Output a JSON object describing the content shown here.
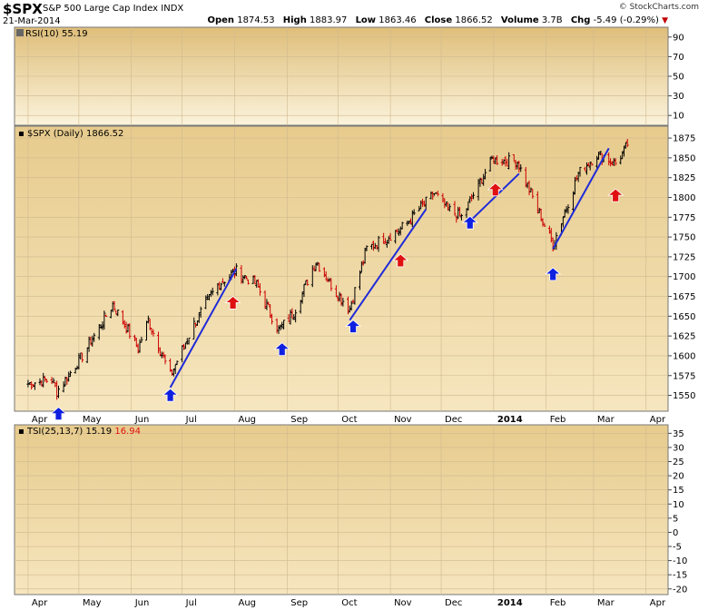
{
  "header": {
    "symbol": "$SPX",
    "name": "S&P 500 Large Cap Index",
    "exchange": "INDX",
    "date": "21-Mar-2014",
    "logo": "© StockCharts.com",
    "open_label": "Open",
    "open": "1874.53",
    "high_label": "High",
    "high": "1883.97",
    "low_label": "Low",
    "low": "1863.46",
    "close_label": "Close",
    "close": "1866.52",
    "volume_label": "Volume",
    "volume": "3.7B",
    "chg_label": "Chg",
    "chg": "-5.49 (-0.29%)"
  },
  "colors": {
    "panel_bg": "#f6e8c2",
    "panel_bg_top": "#e4c584",
    "up": "#000000",
    "down": "#cc0000",
    "trendline": "#1f2ad8",
    "buy_arrow": "#1020e0",
    "sell_arrow": "#e01010"
  },
  "chart_data": [
    {
      "type": "line",
      "name": "RSI(10)",
      "legend": "RSI(10) 55.19",
      "ylim": [
        0,
        100
      ],
      "yticks": [
        10,
        30,
        50,
        70,
        90
      ],
      "last_value": 55.19
    },
    {
      "type": "candlestick",
      "legend": "$SPX (Daily) 1866.52",
      "ylim": [
        1530,
        1890
      ],
      "yticks": [
        1550,
        1575,
        1600,
        1625,
        1650,
        1675,
        1700,
        1725,
        1750,
        1775,
        1800,
        1825,
        1850,
        1875
      ],
      "xticks": [
        "Apr",
        "May",
        "Jun",
        "Jul",
        "Aug",
        "Sep",
        "Oct",
        "Nov",
        "Dec",
        "2014",
        "Feb",
        "Mar",
        "Apr"
      ],
      "series": [
        {
          "x": [
            "2013-04-01",
            "2013-04-15",
            "2013-04-18",
            "2013-05-03",
            "2013-05-21",
            "2013-06-05",
            "2013-06-11",
            "2013-06-24",
            "2013-07-08",
            "2013-07-22",
            "2013-08-02",
            "2013-08-14",
            "2013-08-27",
            "2013-09-05",
            "2013-09-18",
            "2013-09-30",
            "2013-10-08",
            "2013-10-18",
            "2013-11-07",
            "2013-11-27",
            "2013-12-05",
            "2013-12-13",
            "2013-12-31",
            "2014-01-15",
            "2014-02-05",
            "2014-02-20",
            "2014-03-03",
            "2014-03-14",
            "2014-03-21"
          ],
          "values": [
            1565,
            1570,
            1555,
            1600,
            1665,
            1610,
            1645,
            1575,
            1640,
            1690,
            1707,
            1690,
            1632,
            1655,
            1720,
            1680,
            1660,
            1735,
            1760,
            1805,
            1785,
            1775,
            1848,
            1845,
            1740,
            1830,
            1855,
            1843,
            1866
          ]
        }
      ],
      "trendlines": [
        {
          "from": [
            "2013-06-24",
            1560
          ],
          "to": [
            "2013-08-02",
            1710
          ]
        },
        {
          "from": [
            "2013-10-08",
            1645
          ],
          "to": [
            "2013-11-22",
            1785
          ]
        },
        {
          "from": [
            "2013-12-18",
            1770
          ],
          "to": [
            "2014-01-16",
            1830
          ]
        },
        {
          "from": [
            "2014-02-05",
            1735
          ],
          "to": [
            "2014-03-10",
            1862
          ]
        }
      ],
      "buy_signals": [
        "2013-04-19",
        "2013-06-24",
        "2013-08-29",
        "2013-10-10",
        "2013-12-18",
        "2014-02-05"
      ],
      "sell_signals": [
        "2013-07-31",
        "2013-11-07",
        "2014-01-02",
        "2014-03-14"
      ]
    },
    {
      "type": "line",
      "name": "TSI(25,13,7)",
      "legend": "TSI(25,13,7)",
      "legend_value": "15.19",
      "legend_signal": "16.94",
      "ylim": [
        -22,
        38
      ],
      "yticks": [
        -20,
        -15,
        -10,
        -5,
        0,
        5,
        10,
        15,
        20,
        25,
        30,
        35
      ],
      "xticks": [
        "Apr",
        "May",
        "Jun",
        "Jul",
        "Aug",
        "Sep",
        "Oct",
        "Nov",
        "Dec",
        "2014",
        "Feb",
        "Mar",
        "Apr"
      ]
    }
  ]
}
